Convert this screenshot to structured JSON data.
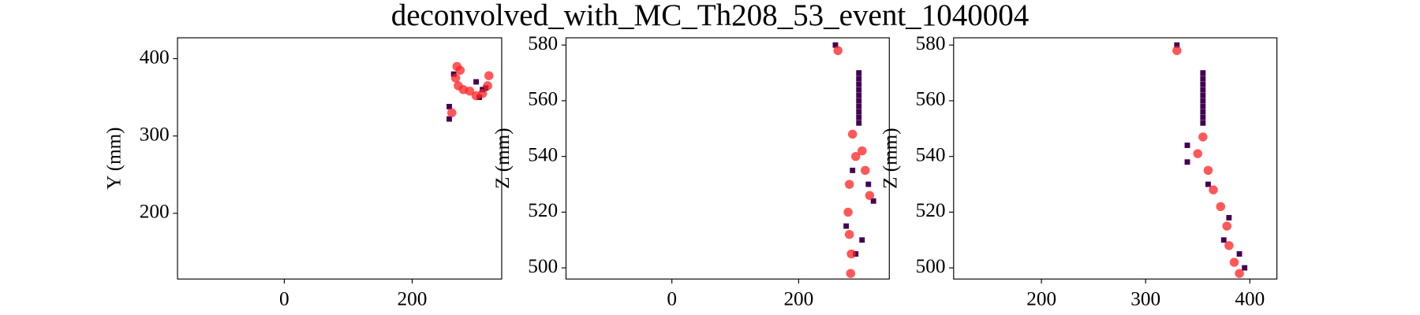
{
  "title": "deconvolved_with_MC_Th208_53_event_1040004",
  "chart_data": [
    {
      "type": "scatter",
      "ylabel": "Y (mm)",
      "xlim": [
        -167,
        340
      ],
      "ylim": [
        115,
        427
      ],
      "xticks": [
        0,
        200
      ],
      "yticks": [
        200,
        300,
        400
      ],
      "series": [
        {
          "color": "#440154",
          "marker": "s",
          "x": [
            258,
            258,
            300,
            310,
            315,
            265,
            305
          ],
          "values": [
            338,
            322,
            370,
            360,
            362,
            380,
            350
          ]
        },
        {
          "color": "#ff2020",
          "marker": "o",
          "x": [
            270,
            275,
            268,
            272,
            280,
            290,
            300,
            310,
            318,
            320,
            262
          ],
          "values": [
            390,
            385,
            375,
            365,
            360,
            358,
            352,
            355,
            365,
            378,
            330
          ]
        }
      ]
    },
    {
      "type": "scatter",
      "ylabel": "Z (mm)",
      "xlim": [
        -167,
        343
      ],
      "ylim": [
        496,
        582.6
      ],
      "xticks": [
        0,
        200
      ],
      "yticks": [
        500,
        520,
        540,
        560,
        580
      ],
      "series": [
        {
          "color": "#440154",
          "marker": "s",
          "x": [
            258,
            295,
            295,
            295,
            295,
            295,
            295,
            295,
            295,
            295,
            295,
            310,
            318,
            275,
            300,
            290,
            285
          ],
          "values": [
            580,
            552,
            554,
            556,
            558,
            560,
            562,
            564,
            566,
            568,
            570,
            530,
            524,
            515,
            510,
            505,
            535
          ]
        },
        {
          "color": "#ff2020",
          "marker": "o",
          "x": [
            262,
            285,
            290,
            300,
            305,
            312,
            280,
            278,
            280,
            283,
            282
          ],
          "values": [
            578,
            548,
            540,
            542,
            535,
            526,
            530,
            520,
            512,
            505,
            498
          ]
        }
      ]
    },
    {
      "type": "scatter",
      "ylabel": "Z (mm)",
      "xlim": [
        115.7,
        426
      ],
      "ylim": [
        496,
        582.6
      ],
      "xticks": [
        200,
        300,
        400
      ],
      "yticks": [
        500,
        520,
        540,
        560,
        580
      ],
      "series": [
        {
          "color": "#440154",
          "marker": "s",
          "x": [
            330,
            340,
            355,
            355,
            355,
            355,
            355,
            355,
            355,
            355,
            355,
            355,
            340,
            380,
            375,
            390,
            360,
            395
          ],
          "values": [
            580,
            544,
            552,
            554,
            556,
            558,
            560,
            562,
            564,
            566,
            568,
            570,
            538,
            518,
            510,
            505,
            530,
            500
          ]
        },
        {
          "color": "#ff2020",
          "marker": "o",
          "x": [
            330,
            350,
            355,
            360,
            365,
            372,
            378,
            380,
            385,
            390
          ],
          "values": [
            578,
            541,
            547,
            535,
            528,
            522,
            515,
            508,
            502,
            498
          ]
        }
      ]
    }
  ]
}
